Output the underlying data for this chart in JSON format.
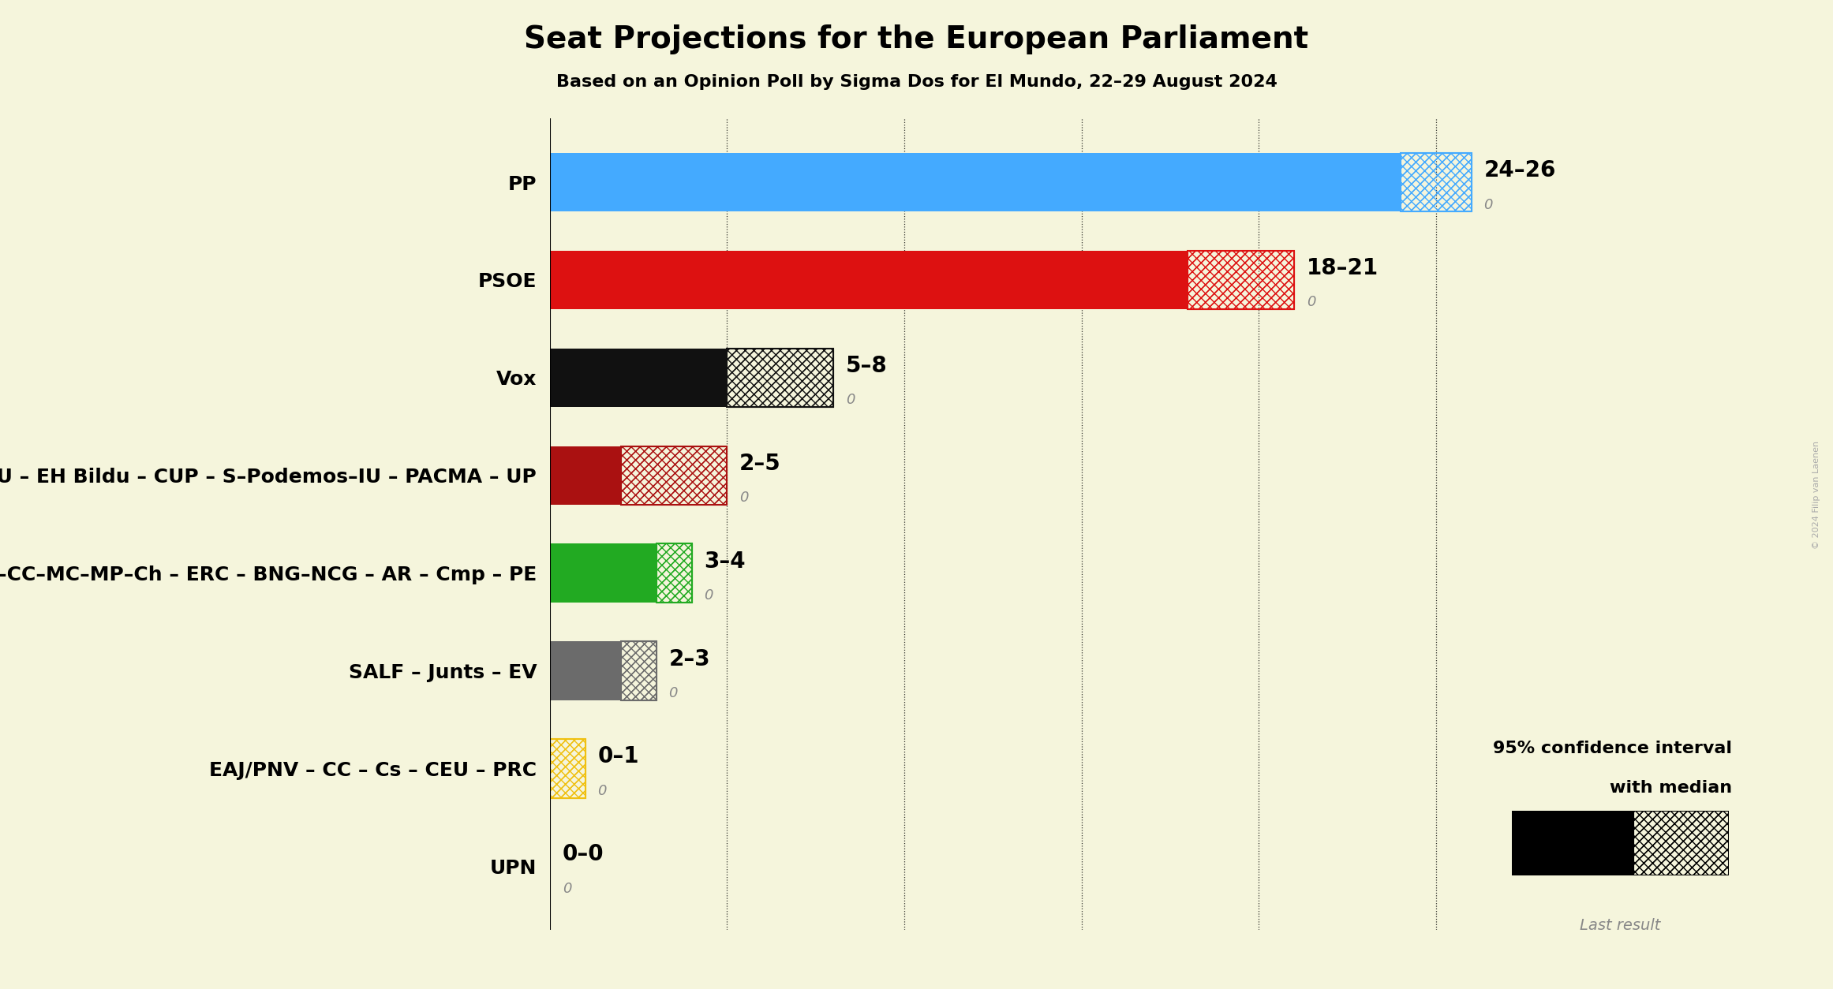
{
  "title": "Seat Projections for the European Parliament",
  "subtitle": "Based on an Opinion Poll by Sigma Dos for El Mundo, 22–29 August 2024",
  "background_color": "#f5f5dc",
  "parties": [
    "UPN",
    "EAJ/PNV – CC – Cs – CEU – PRC",
    "SALF – Junts – EV",
    "S–CC–MC–MP–Ch – ERC – BNG–NCG – AR – Cmp – PE",
    "Podemos – S–IU – EH Bildu – CUP – S–Podemos–IU – PACMA – UP",
    "Vox",
    "PSOE",
    "PP"
  ],
  "median_values": [
    0,
    0,
    2,
    3,
    2,
    5,
    18,
    24
  ],
  "ci_high": [
    0,
    1,
    3,
    4,
    5,
    8,
    21,
    26
  ],
  "labels": [
    "0–0",
    "0–1",
    "2–3",
    "3–4",
    "2–5",
    "5–8",
    "18–21",
    "24–26"
  ],
  "colors": [
    "#111111",
    "#f0c010",
    "#6b6b6b",
    "#22aa22",
    "#aa1111",
    "#111111",
    "#dd1111",
    "#44aaff"
  ],
  "title_fontsize": 28,
  "subtitle_fontsize": 16,
  "label_fontsize": 20,
  "tick_fontsize": 18,
  "annotation_fontsize": 13,
  "xlim": [
    0,
    30
  ],
  "gridlines": [
    5,
    10,
    15,
    20,
    25
  ],
  "copyright_text": "© 2024 Filip van Laenen",
  "legend_text1": "95% confidence interval",
  "legend_text2": "with median",
  "legend_last_result": "Last result"
}
